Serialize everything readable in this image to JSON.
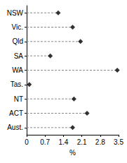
{
  "chart_data": {
    "type": "scatter",
    "orientation": "horizontal",
    "categories": [
      "NSW",
      "Vic.",
      "Qld",
      "SA",
      "WA",
      "Tas.",
      "NT",
      "ACT",
      "Aust."
    ],
    "values": [
      1.2,
      1.75,
      2.05,
      0.9,
      3.45,
      0.1,
      1.8,
      2.3,
      1.75
    ],
    "color": "#000000",
    "marker": "diamond",
    "line_style": "dashed",
    "xlabel": "%",
    "xlim": [
      0,
      3.5
    ],
    "xticks": [
      0,
      0.7,
      1.4,
      2.1,
      2.8,
      3.5
    ],
    "grid": false
  }
}
